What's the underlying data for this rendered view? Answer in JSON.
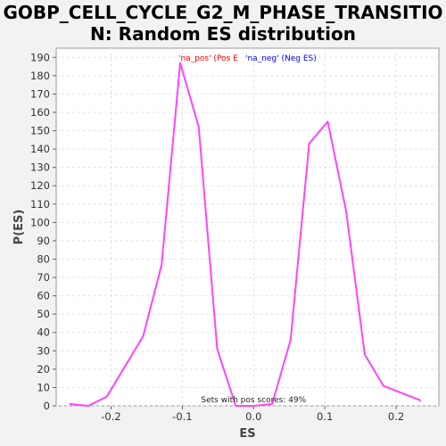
{
  "chart_data": {
    "type": "line",
    "title": "GOBP_CELL_CYCLE_G2_M_PHASE_TRANSITIO\nN: Random ES distribution",
    "xlabel": "ES",
    "ylabel": "P(ES)",
    "xlim": [
      -0.277,
      0.26
    ],
    "ylim": [
      0,
      195
    ],
    "xticks": [
      -0.2,
      -0.1,
      0.0,
      0.1,
      0.2
    ],
    "xtick_labels": [
      "-0.2",
      "-0.1",
      "0.0",
      "0.1",
      "0.2"
    ],
    "yticks": [
      0,
      10,
      20,
      30,
      40,
      50,
      60,
      70,
      80,
      90,
      100,
      110,
      120,
      130,
      140,
      150,
      160,
      170,
      180,
      190
    ],
    "ytick_labels": [
      "0",
      "10",
      "20",
      "30",
      "40",
      "50",
      "60",
      "70",
      "80",
      "90",
      "100",
      "110",
      "120",
      "130",
      "140",
      "150",
      "160",
      "170",
      "180",
      "190"
    ],
    "grid": true,
    "legend_placement": "top",
    "legend": [
      {
        "label": "'na_pos' (Pos E",
        "color": "#ff0000"
      },
      {
        "label": "'na_neg' (Neg ES)",
        "color": "#0000ff"
      }
    ],
    "annotation": "Sets with pos scores: 49%",
    "series": [
      {
        "color": "#ff44ff",
        "x": [
          -0.258,
          -0.232,
          -0.206,
          -0.155,
          -0.129,
          -0.103,
          -0.077,
          -0.051,
          -0.025,
          0.0,
          0.026,
          0.052,
          0.078,
          0.104,
          0.13,
          0.156,
          0.182,
          0.234
        ],
        "y": [
          1,
          0,
          5,
          38,
          77,
          187,
          152,
          31,
          0,
          0,
          1,
          36,
          143,
          155,
          106,
          28,
          11,
          3
        ]
      }
    ]
  }
}
